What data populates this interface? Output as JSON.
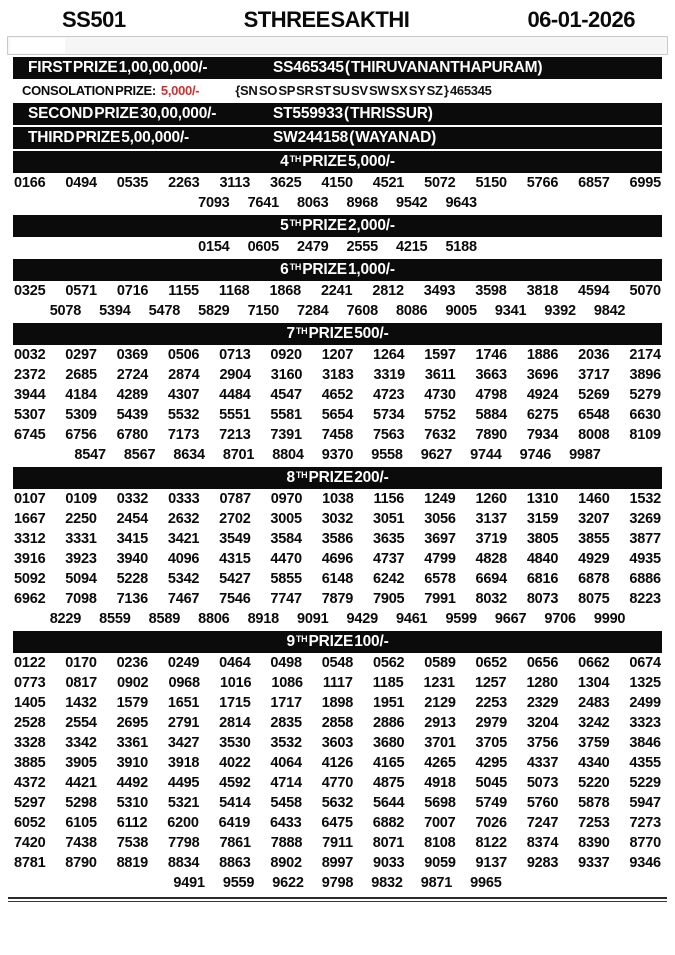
{
  "header": {
    "code": "SS501",
    "title": "STHREE SAKTHI",
    "date": "06-01-2026"
  },
  "colors": {
    "bar_bg": "#0b0b0b",
    "bar_text": "#ffffff",
    "accent_red": "#d32f2f"
  },
  "first_prize": {
    "label": "FIRST PRIZE 1,00,00,000/-",
    "winner": "SS465345 ( THIRUVANANTHAPURAM)"
  },
  "consolation": {
    "label": "CONSOLATION PRIZE:",
    "amount": "5,000/-",
    "series": "{SN SO SP SR ST SU SV SW SX SY SZ } 465345"
  },
  "second_prize": {
    "label": "SECOND PRIZE 30,00,000/-",
    "winner": "ST559933 ( THRISSUR)"
  },
  "third_prize": {
    "label": "THIRD PRIZE 5,00,000/-",
    "winner": "SW244158 ( WAYANAD)"
  },
  "per_row": 13,
  "sections": [
    {
      "ordinal": "4",
      "sup": "TH",
      "rest": " PRIZE 5,000/-",
      "numbers": [
        "0166",
        "0494",
        "0535",
        "2263",
        "3113",
        "3625",
        "4150",
        "4521",
        "5072",
        "5150",
        "5766",
        "6857",
        "6995",
        "7093",
        "7641",
        "8063",
        "8968",
        "9542",
        "9643"
      ]
    },
    {
      "ordinal": "5",
      "sup": "TH",
      "rest": " PRIZE 2,000/-",
      "numbers": [
        "0154",
        "0605",
        "2479",
        "2555",
        "4215",
        "5188"
      ]
    },
    {
      "ordinal": "6",
      "sup": "TH",
      "rest": " PRIZE 1,000/-",
      "numbers": [
        "0325",
        "0571",
        "0716",
        "1155",
        "1168",
        "1868",
        "2241",
        "2812",
        "3493",
        "3598",
        "3818",
        "4594",
        "5070",
        "5078",
        "5394",
        "5478",
        "5829",
        "7150",
        "7284",
        "7608",
        "8086",
        "9005",
        "9341",
        "9392",
        "9842"
      ]
    },
    {
      "ordinal": "7",
      "sup": "TH",
      "rest": " PRIZE 500/-",
      "numbers": [
        "0032",
        "0297",
        "0369",
        "0506",
        "0713",
        "0920",
        "1207",
        "1264",
        "1597",
        "1746",
        "1886",
        "2036",
        "2174",
        "2372",
        "2685",
        "2724",
        "2874",
        "2904",
        "3160",
        "3183",
        "3319",
        "3611",
        "3663",
        "3696",
        "3717",
        "3896",
        "3944",
        "4184",
        "4289",
        "4307",
        "4484",
        "4547",
        "4652",
        "4723",
        "4730",
        "4798",
        "4924",
        "5269",
        "5279",
        "5307",
        "5309",
        "5439",
        "5532",
        "5551",
        "5581",
        "5654",
        "5734",
        "5752",
        "5884",
        "6275",
        "6548",
        "6630",
        "6745",
        "6756",
        "6780",
        "7173",
        "7213",
        "7391",
        "7458",
        "7563",
        "7632",
        "7890",
        "7934",
        "8008",
        "8109",
        "8547",
        "8567",
        "8634",
        "8701",
        "8804",
        "9370",
        "9558",
        "9627",
        "9744",
        "9746",
        "9987"
      ]
    },
    {
      "ordinal": "8",
      "sup": "TH",
      "rest": " PRIZE 200/-",
      "numbers": [
        "0107",
        "0109",
        "0332",
        "0333",
        "0787",
        "0970",
        "1038",
        "1156",
        "1249",
        "1260",
        "1310",
        "1460",
        "1532",
        "1667",
        "2250",
        "2454",
        "2632",
        "2702",
        "3005",
        "3032",
        "3051",
        "3056",
        "3137",
        "3159",
        "3207",
        "3269",
        "3312",
        "3331",
        "3415",
        "3421",
        "3549",
        "3584",
        "3586",
        "3635",
        "3697",
        "3719",
        "3805",
        "3855",
        "3877",
        "3916",
        "3923",
        "3940",
        "4096",
        "4315",
        "4470",
        "4696",
        "4737",
        "4799",
        "4828",
        "4840",
        "4929",
        "4935",
        "5092",
        "5094",
        "5228",
        "5342",
        "5427",
        "5855",
        "6148",
        "6242",
        "6578",
        "6694",
        "6816",
        "6878",
        "6886",
        "6962",
        "7098",
        "7136",
        "7467",
        "7546",
        "7747",
        "7879",
        "7905",
        "7991",
        "8032",
        "8073",
        "8075",
        "8223",
        "8229",
        "8559",
        "8589",
        "8806",
        "8918",
        "9091",
        "9429",
        "9461",
        "9599",
        "9667",
        "9706",
        "9990"
      ]
    },
    {
      "ordinal": "9",
      "sup": "TH",
      "rest": " PRIZE 100/-",
      "numbers": [
        "0122",
        "0170",
        "0236",
        "0249",
        "0464",
        "0498",
        "0548",
        "0562",
        "0589",
        "0652",
        "0656",
        "0662",
        "0674",
        "0773",
        "0817",
        "0902",
        "0968",
        "1016",
        "1086",
        "1117",
        "1185",
        "1231",
        "1257",
        "1280",
        "1304",
        "1325",
        "1405",
        "1432",
        "1579",
        "1651",
        "1715",
        "1717",
        "1898",
        "1951",
        "2129",
        "2253",
        "2329",
        "2483",
        "2499",
        "2528",
        "2554",
        "2695",
        "2791",
        "2814",
        "2835",
        "2858",
        "2886",
        "2913",
        "2979",
        "3204",
        "3242",
        "3323",
        "3328",
        "3342",
        "3361",
        "3427",
        "3530",
        "3532",
        "3603",
        "3680",
        "3701",
        "3705",
        "3756",
        "3759",
        "3846",
        "3885",
        "3905",
        "3910",
        "3918",
        "4022",
        "4064",
        "4126",
        "4165",
        "4265",
        "4295",
        "4337",
        "4340",
        "4355",
        "4372",
        "4421",
        "4492",
        "4495",
        "4592",
        "4714",
        "4770",
        "4875",
        "4918",
        "5045",
        "5073",
        "5220",
        "5229",
        "5297",
        "5298",
        "5310",
        "5321",
        "5414",
        "5458",
        "5632",
        "5644",
        "5698",
        "5749",
        "5760",
        "5878",
        "5947",
        "6052",
        "6105",
        "6112",
        "6200",
        "6419",
        "6433",
        "6475",
        "6882",
        "7007",
        "7026",
        "7247",
        "7253",
        "7273",
        "7420",
        "7438",
        "7538",
        "7798",
        "7861",
        "7888",
        "7911",
        "8071",
        "8108",
        "8122",
        "8374",
        "8390",
        "8770",
        "8781",
        "8790",
        "8819",
        "8834",
        "8863",
        "8902",
        "8997",
        "9033",
        "9059",
        "9137",
        "9283",
        "9337",
        "9346",
        "9491",
        "9559",
        "9622",
        "9798",
        "9832",
        "9871",
        "9965"
      ]
    }
  ]
}
